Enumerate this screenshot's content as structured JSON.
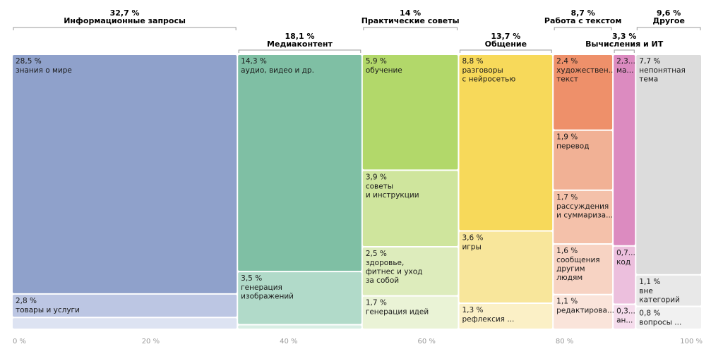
{
  "chart_data": {
    "type": "treemap",
    "x_ticks": [
      "0 %",
      "20 %",
      "40 %",
      "60 %",
      "80 %",
      "100 %"
    ],
    "groups": [
      {
        "name": "Информационные запросы",
        "pct": "32,7 %",
        "value": 32.7,
        "items": [
          {
            "pct": "28,5 %",
            "label": [
              "знания о мире"
            ],
            "value": 28.5,
            "color": "#8fa1cb"
          },
          {
            "pct": "2,8 %",
            "label": [
              "товары и услуги"
            ],
            "value": 2.8,
            "color": "#bcc6e3"
          },
          {
            "pct": "",
            "label": [],
            "value": 1.4,
            "color": "#dde3f2"
          }
        ]
      },
      {
        "name": "Медиаконтент",
        "pct": "18,1 %",
        "value": 18.1,
        "items": [
          {
            "pct": "14,3 %",
            "label": [
              "аудио, видео и др."
            ],
            "value": 14.3,
            "color": "#7fbfa4"
          },
          {
            "pct": "3,5 %",
            "label": [
              "генерация",
              "изображений"
            ],
            "value": 3.5,
            "color": "#b1dac9"
          },
          {
            "pct": "",
            "label": [],
            "value": 0.3,
            "color": "#d8eee4"
          }
        ]
      },
      {
        "name": "Практические советы",
        "pct": "14 %",
        "value": 14,
        "items": [
          {
            "pct": "5,9 %",
            "label": [
              "обучение"
            ],
            "value": 5.9,
            "color": "#b2d86a"
          },
          {
            "pct": "3,9 %",
            "label": [
              "советы",
              "и инструкции"
            ],
            "value": 3.9,
            "color": "#cfe59d"
          },
          {
            "pct": "2,5 %",
            "label": [
              "здоровье,",
              "фитнес и уход",
              "за собой"
            ],
            "value": 2.5,
            "color": "#ddecbc"
          },
          {
            "pct": "1,7 %",
            "label": [
              "генерация идей"
            ],
            "value": 1.7,
            "color": "#eaf3d6"
          }
        ]
      },
      {
        "name": "Общение",
        "pct": "13,7 %",
        "value": 13.7,
        "items": [
          {
            "pct": "8,8 %",
            "label": [
              "разговоры",
              "с нейросетью"
            ],
            "value": 8.8,
            "color": "#f7d95a"
          },
          {
            "pct": "3,6 %",
            "label": [
              "игры"
            ],
            "value": 3.6,
            "color": "#f8e69b"
          },
          {
            "pct": "1,3 %",
            "label": [
              "рефлексия ..."
            ],
            "value": 1.3,
            "color": "#fbf0c6"
          }
        ]
      },
      {
        "name": "Работа с текстом",
        "pct": "8,7 %",
        "value": 8.7,
        "items": [
          {
            "pct": "2,4 %",
            "label": [
              "художествен...",
              "текст"
            ],
            "value": 2.4,
            "color": "#ee906a"
          },
          {
            "pct": "1,9 %",
            "label": [
              "перевод"
            ],
            "value": 1.9,
            "color": "#f1b195"
          },
          {
            "pct": "1,7 %",
            "label": [
              "рассуждения",
              "и суммариза..."
            ],
            "value": 1.7,
            "color": "#f4c1aa"
          },
          {
            "pct": "1,6 %",
            "label": [
              "сообщения",
              "другим",
              "людям"
            ],
            "value": 1.6,
            "color": "#f7d3c3"
          },
          {
            "pct": "1,1 %",
            "label": [
              "редактирова..."
            ],
            "value": 1.1,
            "color": "#fae4da"
          }
        ]
      },
      {
        "name": "Вычисления и ИТ",
        "pct": "3,3 %",
        "value": 3.3,
        "items": [
          {
            "pct": "2,3...",
            "label": [
              "ма..."
            ],
            "value": 2.3,
            "color": "#dc8bc0"
          },
          {
            "pct": "0,7...",
            "label": [
              "код"
            ],
            "value": 0.7,
            "color": "#ecbfdd"
          },
          {
            "pct": "0,3...",
            "label": [
              "ан..."
            ],
            "value": 0.3,
            "color": "#f5dcec"
          }
        ]
      },
      {
        "name": "Другое",
        "pct": "9,6 %",
        "value": 9.6,
        "items": [
          {
            "pct": "7,7 %",
            "label": [
              "непонятная",
              "тема"
            ],
            "value": 7.7,
            "color": "#dcdcdc"
          },
          {
            "pct": "1,1 %",
            "label": [
              "вне",
              "категорий"
            ],
            "value": 1.1,
            "color": "#e8e8e8"
          },
          {
            "pct": "0,8 %",
            "label": [
              "вопросы ..."
            ],
            "value": 0.8,
            "color": "#f1f1f1"
          }
        ]
      }
    ]
  }
}
